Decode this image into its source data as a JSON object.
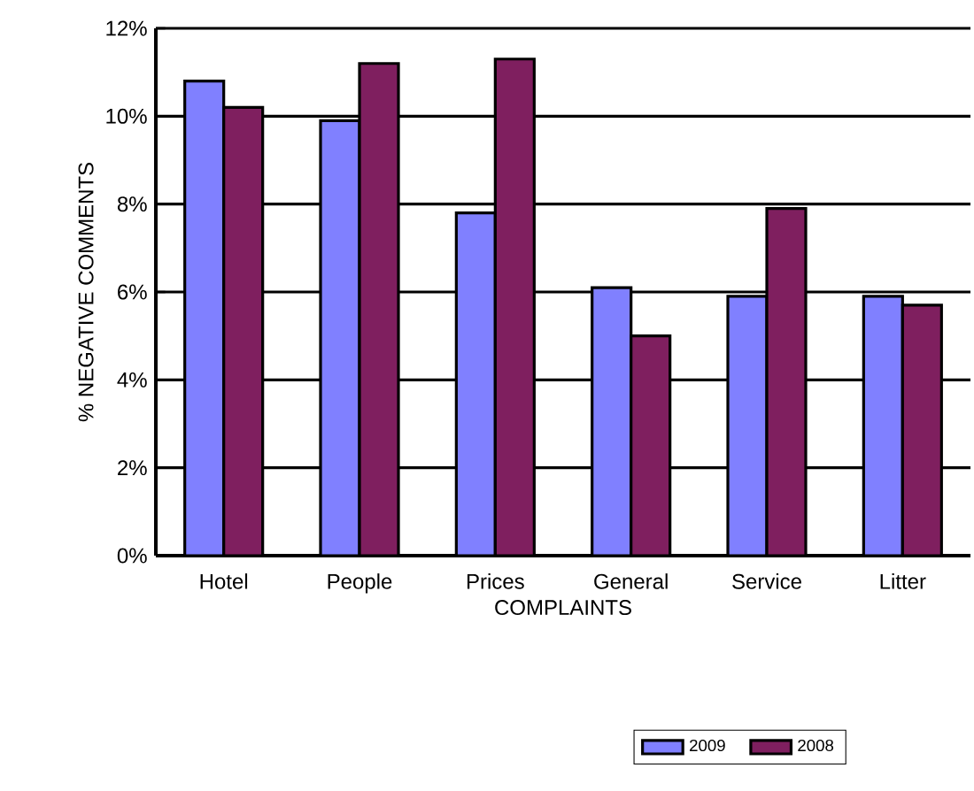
{
  "chart_data": {
    "type": "bar",
    "xlabel": "COMPLAINTS",
    "ylabel": "% NEGATIVE COMMENTS",
    "categories": [
      "Hotel",
      "People",
      "Prices",
      "General",
      "Service",
      "Litter"
    ],
    "series": [
      {
        "name": "2009",
        "color": "#8080ff",
        "values": [
          10.8,
          9.9,
          7.8,
          6.1,
          5.9,
          5.9
        ]
      },
      {
        "name": "2008",
        "color": "#7f1f5f",
        "values": [
          10.2,
          11.2,
          11.3,
          5.0,
          7.9,
          5.7
        ]
      }
    ],
    "ylim": [
      0,
      12
    ],
    "yticks": [
      {
        "value": 0,
        "label": "0%"
      },
      {
        "value": 2,
        "label": "2%"
      },
      {
        "value": 4,
        "label": "4%"
      },
      {
        "value": 6,
        "label": "6%"
      },
      {
        "value": 8,
        "label": "8%"
      },
      {
        "value": 10,
        "label": "10%"
      },
      {
        "value": 12,
        "label": "12%"
      }
    ],
    "grid": "y",
    "legend": "bottom"
  }
}
